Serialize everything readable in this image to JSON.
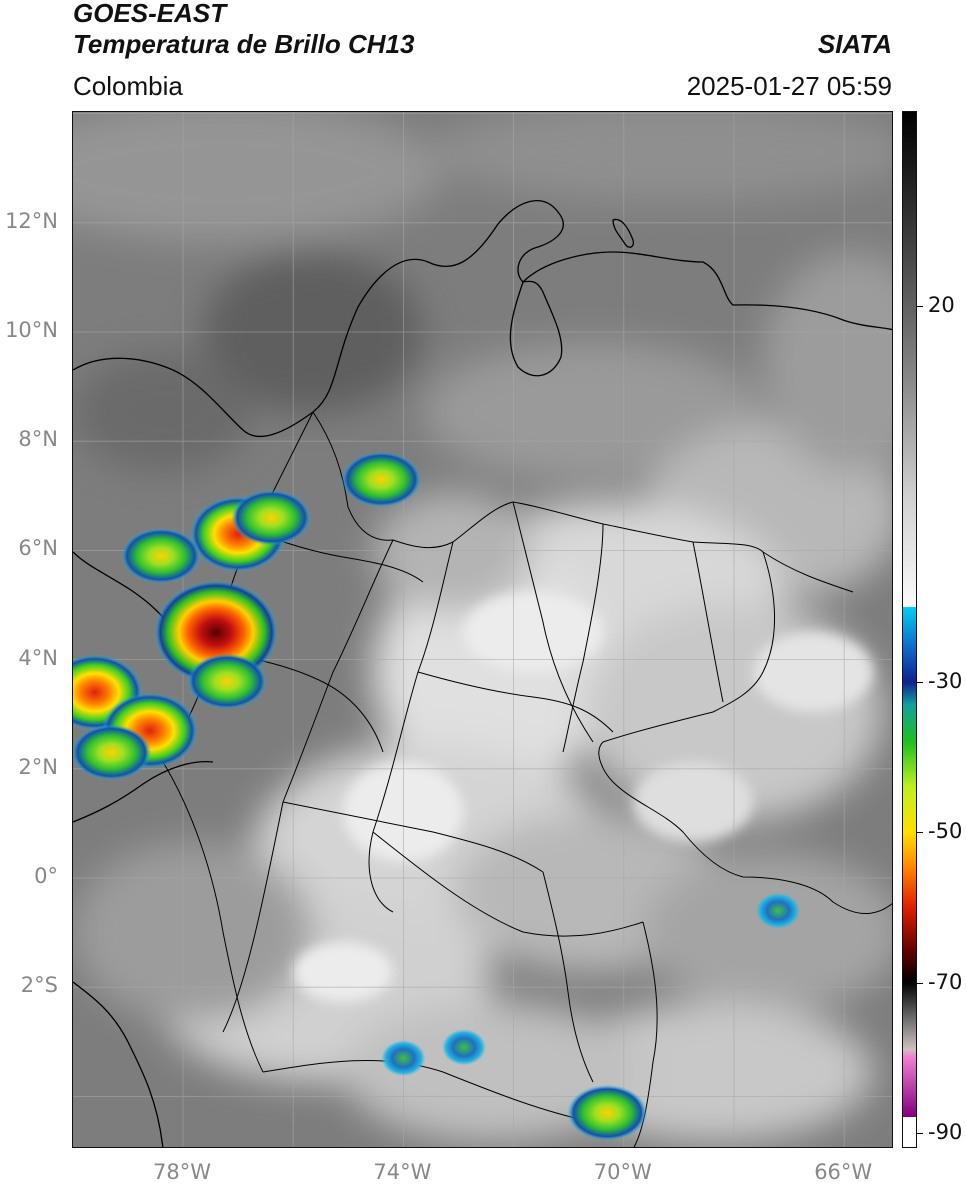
{
  "header": {
    "title_line1": "GOES-EAST",
    "title_line2": "Temperatura de Brillo CH13",
    "organization": "SIATA",
    "region": "Colombia",
    "datetime": "2025-01-27 05:59"
  },
  "map": {
    "lat_labels": [
      "12°N",
      "10°N",
      "8°N",
      "6°N",
      "4°N",
      "2°N",
      "0°",
      "2°S"
    ],
    "lon_labels": [
      "78°W",
      "74°W",
      "70°W",
      "66°W"
    ],
    "lon_range": [
      -80,
      -65
    ],
    "lat_range": [
      -5,
      14
    ],
    "storm_cells": [
      {
        "lon": -77.4,
        "lat": 4.5,
        "intensity": "very-high"
      },
      {
        "lon": -77.0,
        "lat": 6.3,
        "intensity": "high"
      },
      {
        "lon": -76.4,
        "lat": 6.6,
        "intensity": "medium"
      },
      {
        "lon": -74.4,
        "lat": 7.3,
        "intensity": "medium"
      },
      {
        "lon": -79.6,
        "lat": 3.4,
        "intensity": "high"
      },
      {
        "lon": -78.6,
        "lat": 2.7,
        "intensity": "high"
      },
      {
        "lon": -77.2,
        "lat": 3.6,
        "intensity": "medium"
      },
      {
        "lon": -79.3,
        "lat": 2.3,
        "intensity": "medium"
      },
      {
        "lon": -78.4,
        "lat": 5.9,
        "intensity": "medium"
      },
      {
        "lon": -70.3,
        "lat": -4.3,
        "intensity": "medium"
      },
      {
        "lon": -72.9,
        "lat": -3.1,
        "intensity": "low"
      },
      {
        "lon": -74.0,
        "lat": -3.3,
        "intensity": "low"
      },
      {
        "lon": -67.2,
        "lat": -0.6,
        "intensity": "low"
      }
    ]
  },
  "colorbar": {
    "labels": [
      "20",
      "-30",
      "-50",
      "-70",
      "-90"
    ],
    "tick_values": [
      20,
      -30,
      -50,
      -70,
      -90
    ],
    "value_range": [
      46,
      -92
    ]
  }
}
